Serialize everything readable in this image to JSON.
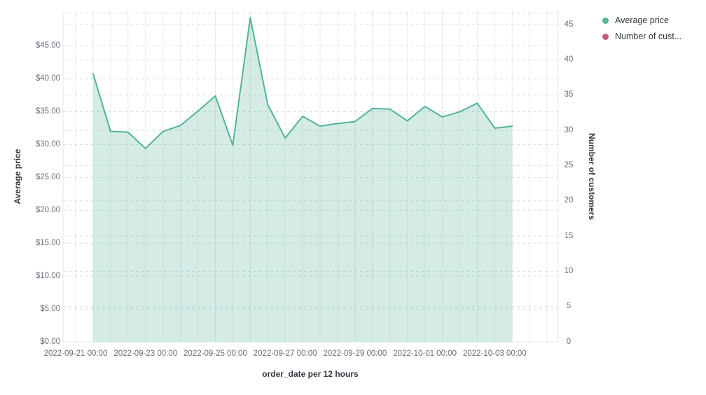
{
  "chart": {
    "legend": {
      "items": [
        {
          "label": "Average price",
          "color": "#54b399"
        },
        {
          "label": "Number of cust...",
          "color": "#c95b76"
        }
      ]
    },
    "axes": {
      "left": {
        "title": "Average price",
        "tick_labels": [
          "$45.00",
          "$40.00",
          "$35.00",
          "$30.00",
          "$25.00",
          "$20.00",
          "$15.00",
          "$10.00",
          "$5.00",
          "$0.00"
        ],
        "tick_values": [
          45,
          40,
          35,
          30,
          25,
          20,
          15,
          10,
          5,
          0
        ]
      },
      "right": {
        "title": "Number of customers",
        "tick_labels": [
          "45",
          "40",
          "35",
          "30",
          "25",
          "20",
          "15",
          "10",
          "5",
          "0"
        ],
        "tick_values": [
          45,
          40,
          35,
          30,
          25,
          20,
          15,
          10,
          5,
          0
        ]
      },
      "bottom": {
        "title": "order_date per 12 hours",
        "tick_labels": [
          "2022-09-21 00:00",
          "2022-09-23 00:00",
          "2022-09-25 00:00",
          "2022-09-27 00:00",
          "2022-09-29 00:00",
          "2022-10-01 00:00",
          "2022-10-03 00:00"
        ]
      }
    },
    "colors": {
      "line": "#54b399",
      "area_fill": "rgba(84,179,153,0.25)",
      "grid_vertical": "#e6eaef",
      "grid_horizontal": "#d9dee8",
      "axis_edge": "#e3e7ee",
      "tick_text": "#69707d",
      "title_text": "#343741"
    }
  },
  "chart_data": {
    "type": "area",
    "title": "",
    "xlabel": "order_date per 12 hours",
    "ylabel_left": "Average price",
    "ylabel_right": "Number of customers",
    "ylim_left": [
      0,
      50.4
    ],
    "ylim_right": [
      0,
      47
    ],
    "grid": true,
    "legend_position": "top-right",
    "x_interval": "12 hours",
    "x": [
      "2022-09-21 12:00",
      "2022-09-22 00:00",
      "2022-09-22 12:00",
      "2022-09-23 00:00",
      "2022-09-23 12:00",
      "2022-09-24 00:00",
      "2022-09-24 12:00",
      "2022-09-25 00:00",
      "2022-09-25 12:00",
      "2022-09-26 00:00",
      "2022-09-26 12:00",
      "2022-09-27 00:00",
      "2022-09-27 12:00",
      "2022-09-28 00:00",
      "2022-09-28 12:00",
      "2022-09-29 00:00",
      "2022-09-29 12:00",
      "2022-09-30 00:00",
      "2022-09-30 12:00",
      "2022-10-01 00:00",
      "2022-10-01 12:00",
      "2022-10-02 00:00",
      "2022-10-02 12:00",
      "2022-10-03 00:00",
      "2022-10-03 12:00"
    ],
    "series": [
      {
        "name": "Average price",
        "axis": "left",
        "color": "#54b399",
        "values": [
          40.8,
          32.0,
          31.9,
          29.4,
          32.0,
          32.9,
          35.1,
          37.4,
          29.9,
          49.3,
          36.1,
          31.0,
          34.3,
          32.8,
          33.2,
          33.5,
          35.5,
          35.4,
          33.6,
          35.8,
          34.2,
          35.0,
          36.3,
          32.5,
          32.8
        ]
      },
      {
        "name": "Number of customers",
        "axis": "right",
        "color": "#c95b76",
        "values": []
      }
    ]
  }
}
